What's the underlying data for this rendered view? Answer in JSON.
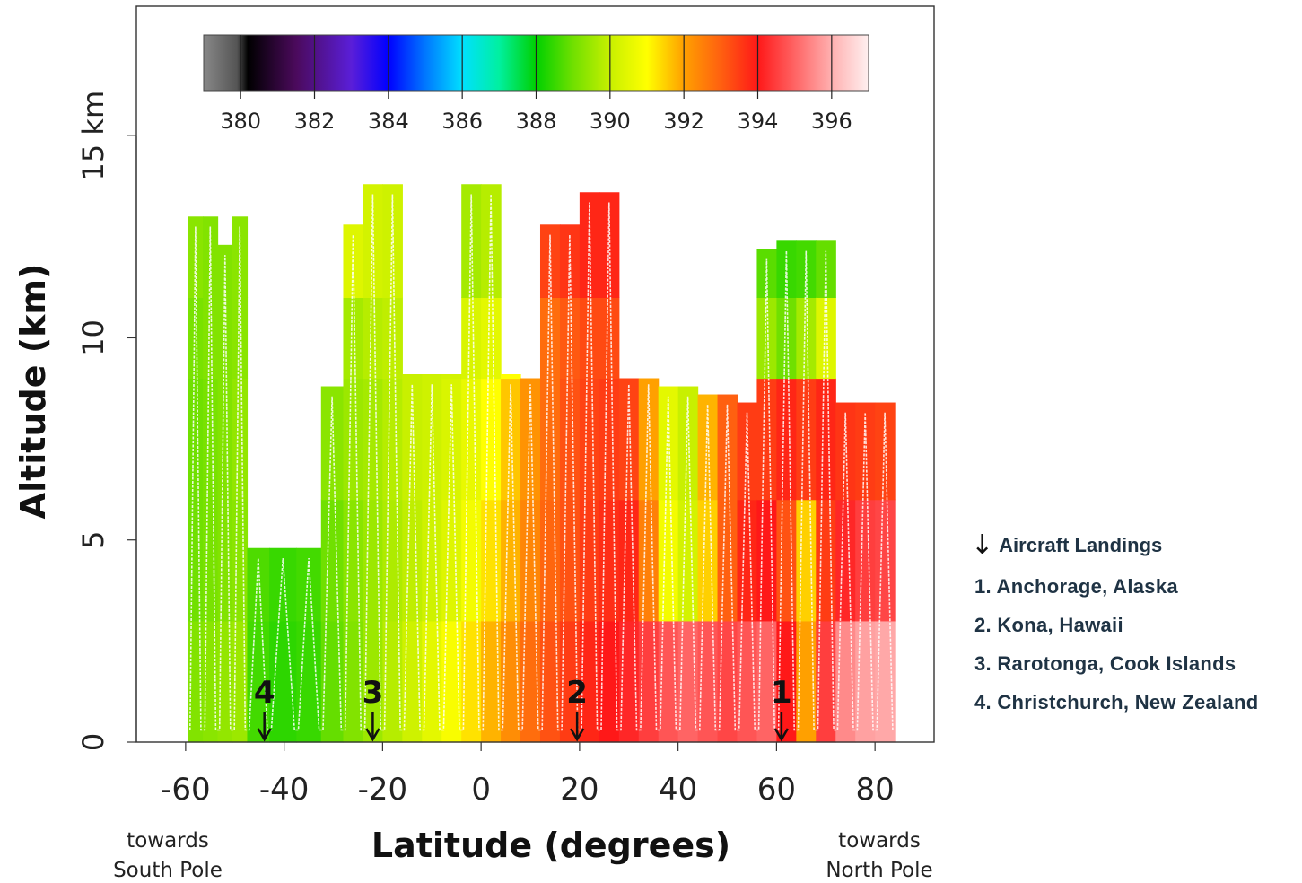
{
  "chart_data": {
    "type": "heatmap",
    "xlabel": "Latitude (degrees)",
    "ylabel": "Altitude (km)",
    "x_ticks": [
      "-60",
      "-40",
      "-20",
      "0",
      "20",
      "40",
      "60",
      "80"
    ],
    "x_tick_values": [
      -60,
      -40,
      -20,
      0,
      20,
      40,
      60,
      80
    ],
    "y_ticks": [
      "0",
      "5",
      "10",
      "15 km"
    ],
    "y_tick_values": [
      0,
      5,
      10,
      15
    ],
    "xlim": [
      -70,
      92
    ],
    "ylim": [
      0,
      18.2
    ],
    "x_notes": {
      "left": [
        "towards",
        "South Pole"
      ],
      "right": [
        "towards",
        "North Pole"
      ]
    },
    "colorbar": {
      "ticks": [
        "380",
        "382",
        "384",
        "386",
        "388",
        "390",
        "392",
        "394",
        "396"
      ],
      "tick_values": [
        380,
        382,
        384,
        386,
        388,
        390,
        392,
        394,
        396
      ],
      "range": [
        379,
        397
      ]
    },
    "flight_curtain": {
      "latitude": [
        -58,
        -55,
        -52,
        -49,
        -46,
        -40,
        -35,
        -30,
        -26,
        -22,
        -18,
        -14,
        -10,
        -6,
        -2,
        2,
        6,
        10,
        14,
        18,
        22,
        26,
        30,
        34,
        38,
        42,
        46,
        50,
        54,
        58,
        62,
        66,
        70,
        74,
        78,
        82
      ],
      "top_altitude_km": [
        13.0,
        13.0,
        12.3,
        13.0,
        4.8,
        4.8,
        4.8,
        8.8,
        12.8,
        13.8,
        13.8,
        9.1,
        9.1,
        9.1,
        13.8,
        13.8,
        9.1,
        9.1,
        12.8,
        12.8,
        13.6,
        13.6,
        9.1,
        9.1,
        8.8,
        8.8,
        8.6,
        8.6,
        8.4,
        12.2,
        12.4,
        12.4,
        12.4,
        8.4,
        8.4,
        8.4
      ],
      "bands": [
        {
          "alt_range_km": [
            0,
            3
          ],
          "co2_ppm": [
            389.2,
            389.3,
            389.4,
            389.5,
            388.6,
            388.4,
            388.5,
            388.9,
            389.2,
            389.5,
            389.8,
            390.1,
            390.5,
            390.9,
            391.3,
            391.8,
            392.3,
            392.8,
            393.2,
            393.5,
            393.8,
            394.0,
            394.2,
            394.5,
            394.8,
            395.0,
            394.8,
            394.6,
            394.8,
            395.0,
            394.0,
            392.0,
            394.5,
            395.5,
            395.8,
            395.9
          ]
        },
        {
          "alt_range_km": [
            3,
            6
          ],
          "co2_ppm": [
            389.0,
            389.1,
            389.2,
            389.3,
            388.7,
            388.5,
            388.6,
            389.0,
            389.3,
            389.5,
            389.7,
            389.9,
            390.1,
            390.4,
            390.8,
            391.3,
            391.8,
            392.4,
            392.9,
            393.2,
            393.5,
            393.7,
            393.8,
            392.5,
            390.8,
            390.2,
            391.5,
            393.0,
            393.8,
            394.0,
            393.2,
            391.5,
            393.5,
            394.2,
            394.5,
            394.6
          ]
        },
        {
          "alt_range_km": [
            6,
            9
          ],
          "co2_ppm": [
            389.0,
            389.1,
            389.2,
            389.4,
            null,
            null,
            null,
            389.3,
            389.5,
            389.6,
            389.8,
            390.0,
            390.1,
            390.3,
            390.6,
            391.0,
            391.6,
            392.2,
            392.8,
            393.2,
            393.4,
            393.5,
            393.4,
            392.0,
            390.5,
            390.0,
            391.8,
            393.0,
            393.5,
            393.5,
            393.8,
            393.5,
            393.8,
            393.6,
            393.5,
            393.4
          ]
        },
        {
          "alt_range_km": [
            9,
            11
          ],
          "co2_ppm": [
            389.1,
            389.2,
            389.2,
            389.3,
            null,
            null,
            null,
            null,
            389.6,
            389.8,
            389.9,
            390.0,
            390.1,
            390.2,
            390.3,
            390.5,
            391.0,
            null,
            392.8,
            393.1,
            393.3,
            393.3,
            null,
            null,
            null,
            null,
            null,
            null,
            null,
            389.5,
            389.0,
            389.6,
            390.4,
            null,
            null,
            null
          ]
        },
        {
          "alt_range_km": [
            11,
            14
          ],
          "co2_ppm": [
            389.3,
            389.2,
            389.2,
            389.3,
            null,
            null,
            null,
            null,
            390.4,
            390.2,
            390.1,
            null,
            null,
            null,
            389.6,
            389.8,
            null,
            null,
            393.4,
            393.6,
            393.8,
            393.8,
            null,
            null,
            null,
            null,
            null,
            null,
            null,
            388.8,
            388.5,
            388.6,
            388.9,
            null,
            null,
            null
          ]
        }
      ]
    },
    "landings": [
      {
        "label": "4",
        "latitude": -44
      },
      {
        "label": "3",
        "latitude": -22
      },
      {
        "label": "2",
        "latitude": 19.5
      },
      {
        "label": "1",
        "latitude": 61
      }
    ]
  },
  "legend": {
    "arrow_icon": "down-arrow-icon",
    "title": "Aircraft Landings",
    "items": [
      "1. Anchorage, Alaska",
      "2. Kona, Hawaii",
      "3. Rarotonga, Cook Islands",
      "4. Christchurch, New Zealand"
    ]
  }
}
